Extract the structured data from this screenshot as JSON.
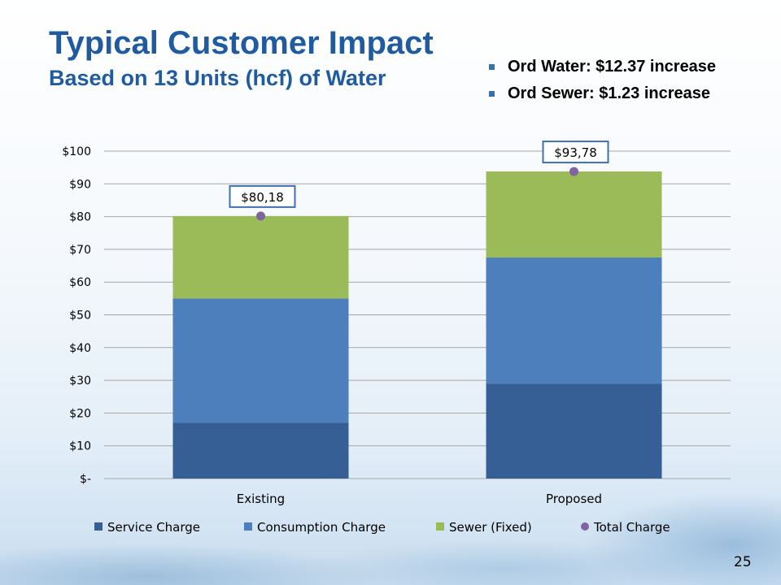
{
  "slide": {
    "title": "Typical Customer Impact",
    "subtitle": "Based on 13 Units (hcf) of Water",
    "bullets": [
      "Ord Water:  $12.37 increase",
      "Ord Sewer:  $1.23 increase"
    ],
    "page_number": "25"
  },
  "chart_data": {
    "type": "bar",
    "stacked": true,
    "categories": [
      "Existing",
      "Proposed"
    ],
    "series": [
      {
        "name": "Service Charge",
        "values": [
          17,
          29
        ],
        "color": "#355f95"
      },
      {
        "name": "Consumption Charge",
        "values": [
          38,
          38.5
        ],
        "color": "#4d7fbc"
      },
      {
        "name": "Sewer  (Fixed)",
        "values": [
          25.18,
          26.28
        ],
        "color": "#9bbb59"
      }
    ],
    "total_series": {
      "name": "Total Charge",
      "values": [
        80.18,
        93.78
      ],
      "labels": [
        "$80,18",
        "$93,78"
      ],
      "color": "#8064a2"
    },
    "ylim": [
      0,
      100
    ],
    "yticks": [
      0,
      10,
      20,
      30,
      40,
      50,
      60,
      70,
      80,
      90,
      100
    ],
    "ytick_labels": [
      "$-",
      "$10",
      "$20",
      "$30",
      "$40",
      "$50",
      "$60",
      "$70",
      "$80",
      "$90",
      "$100"
    ],
    "grid": true,
    "legend_position": "bottom"
  }
}
